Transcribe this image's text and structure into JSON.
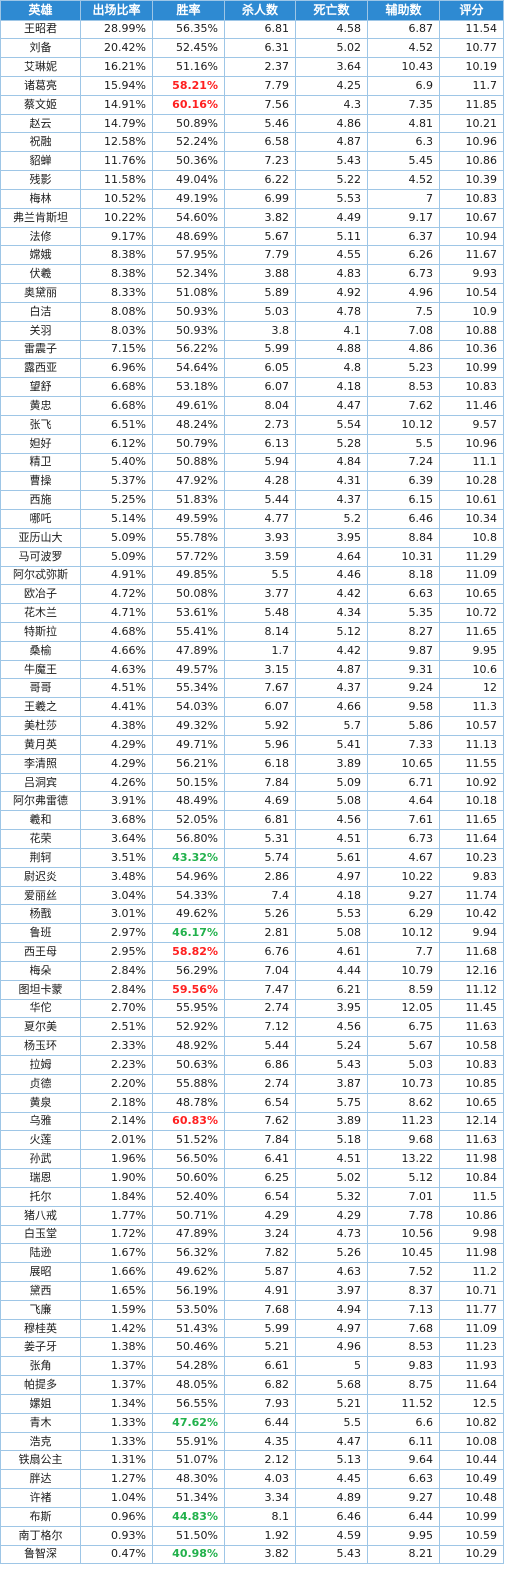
{
  "columns": [
    "英雄",
    "出场比率",
    "胜率",
    "杀人数",
    "死亡数",
    "辅助数",
    "评分"
  ],
  "accent_colors": {
    "header_bg": "#2e8ad2",
    "red_winrate": "#ff2020",
    "green_winrate": "#22b14c",
    "grid": "#9ec6e6"
  },
  "rows": [
    {
      "hero": "王昭君",
      "pick": "28.99%",
      "win": "56.35%",
      "kills": "6.81",
      "deaths": "4.58",
      "assists": "6.87",
      "score": "11.54",
      "hl": ""
    },
    {
      "hero": "刘备",
      "pick": "20.42%",
      "win": "52.45%",
      "kills": "6.31",
      "deaths": "5.02",
      "assists": "4.52",
      "score": "10.77",
      "hl": ""
    },
    {
      "hero": "艾琳妮",
      "pick": "16.21%",
      "win": "51.16%",
      "kills": "2.37",
      "deaths": "3.64",
      "assists": "10.43",
      "score": "10.19",
      "hl": ""
    },
    {
      "hero": "诸葛亮",
      "pick": "15.94%",
      "win": "58.21%",
      "kills": "7.79",
      "deaths": "4.25",
      "assists": "6.9",
      "score": "11.7",
      "hl": "red"
    },
    {
      "hero": "蔡文姬",
      "pick": "14.91%",
      "win": "60.16%",
      "kills": "7.56",
      "deaths": "4.3",
      "assists": "7.35",
      "score": "11.85",
      "hl": "red"
    },
    {
      "hero": "赵云",
      "pick": "14.79%",
      "win": "50.89%",
      "kills": "5.46",
      "deaths": "4.86",
      "assists": "4.81",
      "score": "10.21",
      "hl": ""
    },
    {
      "hero": "祝融",
      "pick": "12.58%",
      "win": "52.24%",
      "kills": "6.58",
      "deaths": "4.87",
      "assists": "6.3",
      "score": "10.96",
      "hl": ""
    },
    {
      "hero": "貂蝉",
      "pick": "11.76%",
      "win": "50.36%",
      "kills": "7.23",
      "deaths": "5.43",
      "assists": "5.45",
      "score": "10.86",
      "hl": ""
    },
    {
      "hero": "残影",
      "pick": "11.58%",
      "win": "49.04%",
      "kills": "6.22",
      "deaths": "5.22",
      "assists": "4.52",
      "score": "10.39",
      "hl": ""
    },
    {
      "hero": "梅林",
      "pick": "10.52%",
      "win": "49.19%",
      "kills": "6.99",
      "deaths": "5.53",
      "assists": "7",
      "score": "10.83",
      "hl": ""
    },
    {
      "hero": "弗兰肯斯坦",
      "pick": "10.22%",
      "win": "54.60%",
      "kills": "3.82",
      "deaths": "4.49",
      "assists": "9.17",
      "score": "10.67",
      "hl": ""
    },
    {
      "hero": "法修",
      "pick": "9.17%",
      "win": "48.69%",
      "kills": "5.67",
      "deaths": "5.11",
      "assists": "6.37",
      "score": "10.94",
      "hl": ""
    },
    {
      "hero": "嫦娥",
      "pick": "8.38%",
      "win": "57.95%",
      "kills": "7.79",
      "deaths": "4.55",
      "assists": "6.26",
      "score": "11.67",
      "hl": ""
    },
    {
      "hero": "伏羲",
      "pick": "8.38%",
      "win": "52.34%",
      "kills": "3.88",
      "deaths": "4.83",
      "assists": "6.73",
      "score": "9.93",
      "hl": ""
    },
    {
      "hero": "奥黛丽",
      "pick": "8.33%",
      "win": "51.08%",
      "kills": "5.89",
      "deaths": "4.92",
      "assists": "4.96",
      "score": "10.54",
      "hl": ""
    },
    {
      "hero": "白洁",
      "pick": "8.08%",
      "win": "50.93%",
      "kills": "5.03",
      "deaths": "4.78",
      "assists": "7.5",
      "score": "10.9",
      "hl": ""
    },
    {
      "hero": "关羽",
      "pick": "8.03%",
      "win": "50.93%",
      "kills": "3.8",
      "deaths": "4.1",
      "assists": "7.08",
      "score": "10.88",
      "hl": ""
    },
    {
      "hero": "雷震子",
      "pick": "7.15%",
      "win": "56.22%",
      "kills": "5.99",
      "deaths": "4.88",
      "assists": "4.86",
      "score": "10.36",
      "hl": ""
    },
    {
      "hero": "露西亚",
      "pick": "6.96%",
      "win": "54.64%",
      "kills": "6.05",
      "deaths": "4.8",
      "assists": "5.23",
      "score": "10.99",
      "hl": ""
    },
    {
      "hero": "望舒",
      "pick": "6.68%",
      "win": "53.18%",
      "kills": "6.07",
      "deaths": "4.18",
      "assists": "8.53",
      "score": "10.83",
      "hl": ""
    },
    {
      "hero": "黄忠",
      "pick": "6.68%",
      "win": "49.61%",
      "kills": "8.04",
      "deaths": "4.47",
      "assists": "7.62",
      "score": "11.46",
      "hl": ""
    },
    {
      "hero": "张飞",
      "pick": "6.51%",
      "win": "48.24%",
      "kills": "2.73",
      "deaths": "5.54",
      "assists": "10.12",
      "score": "9.57",
      "hl": ""
    },
    {
      "hero": "妲好",
      "pick": "6.12%",
      "win": "50.79%",
      "kills": "6.13",
      "deaths": "5.28",
      "assists": "5.5",
      "score": "10.96",
      "hl": ""
    },
    {
      "hero": "精卫",
      "pick": "5.40%",
      "win": "50.88%",
      "kills": "5.94",
      "deaths": "4.84",
      "assists": "7.24",
      "score": "11.1",
      "hl": ""
    },
    {
      "hero": "曹操",
      "pick": "5.37%",
      "win": "47.92%",
      "kills": "4.28",
      "deaths": "4.31",
      "assists": "6.39",
      "score": "10.28",
      "hl": ""
    },
    {
      "hero": "西施",
      "pick": "5.25%",
      "win": "51.83%",
      "kills": "5.44",
      "deaths": "4.37",
      "assists": "6.15",
      "score": "10.61",
      "hl": ""
    },
    {
      "hero": "哪吒",
      "pick": "5.14%",
      "win": "49.59%",
      "kills": "4.77",
      "deaths": "5.2",
      "assists": "6.46",
      "score": "10.34",
      "hl": ""
    },
    {
      "hero": "亚历山大",
      "pick": "5.09%",
      "win": "55.78%",
      "kills": "3.93",
      "deaths": "3.95",
      "assists": "8.84",
      "score": "10.8",
      "hl": ""
    },
    {
      "hero": "马可波罗",
      "pick": "5.09%",
      "win": "57.72%",
      "kills": "3.59",
      "deaths": "4.64",
      "assists": "10.31",
      "score": "11.29",
      "hl": ""
    },
    {
      "hero": "阿尔忒弥斯",
      "pick": "4.91%",
      "win": "49.85%",
      "kills": "5.5",
      "deaths": "4.46",
      "assists": "8.18",
      "score": "11.09",
      "hl": ""
    },
    {
      "hero": "欧冶子",
      "pick": "4.72%",
      "win": "50.08%",
      "kills": "3.77",
      "deaths": "4.42",
      "assists": "6.63",
      "score": "10.65",
      "hl": ""
    },
    {
      "hero": "花木兰",
      "pick": "4.71%",
      "win": "53.61%",
      "kills": "5.48",
      "deaths": "4.34",
      "assists": "5.35",
      "score": "10.72",
      "hl": ""
    },
    {
      "hero": "特斯拉",
      "pick": "4.68%",
      "win": "55.41%",
      "kills": "8.14",
      "deaths": "5.12",
      "assists": "8.27",
      "score": "11.65",
      "hl": ""
    },
    {
      "hero": "桑榆",
      "pick": "4.66%",
      "win": "47.89%",
      "kills": "1.7",
      "deaths": "4.42",
      "assists": "9.87",
      "score": "9.95",
      "hl": ""
    },
    {
      "hero": "牛魔王",
      "pick": "4.63%",
      "win": "49.57%",
      "kills": "3.15",
      "deaths": "4.87",
      "assists": "9.31",
      "score": "10.6",
      "hl": ""
    },
    {
      "hero": "哥哥",
      "pick": "4.51%",
      "win": "55.34%",
      "kills": "7.67",
      "deaths": "4.37",
      "assists": "9.24",
      "score": "12",
      "hl": ""
    },
    {
      "hero": "王羲之",
      "pick": "4.41%",
      "win": "54.03%",
      "kills": "6.07",
      "deaths": "4.66",
      "assists": "9.58",
      "score": "11.3",
      "hl": ""
    },
    {
      "hero": "美杜莎",
      "pick": "4.38%",
      "win": "49.32%",
      "kills": "5.92",
      "deaths": "5.7",
      "assists": "5.86",
      "score": "10.57",
      "hl": ""
    },
    {
      "hero": "黄月英",
      "pick": "4.29%",
      "win": "49.71%",
      "kills": "5.96",
      "deaths": "5.41",
      "assists": "7.33",
      "score": "11.13",
      "hl": ""
    },
    {
      "hero": "李清照",
      "pick": "4.29%",
      "win": "56.21%",
      "kills": "6.18",
      "deaths": "3.89",
      "assists": "10.65",
      "score": "11.55",
      "hl": ""
    },
    {
      "hero": "吕洞宾",
      "pick": "4.26%",
      "win": "50.15%",
      "kills": "7.84",
      "deaths": "5.09",
      "assists": "6.71",
      "score": "10.92",
      "hl": ""
    },
    {
      "hero": "阿尔弗雷德",
      "pick": "3.91%",
      "win": "48.49%",
      "kills": "4.69",
      "deaths": "5.08",
      "assists": "4.64",
      "score": "10.18",
      "hl": ""
    },
    {
      "hero": "羲和",
      "pick": "3.68%",
      "win": "52.05%",
      "kills": "6.81",
      "deaths": "4.56",
      "assists": "7.61",
      "score": "11.65",
      "hl": ""
    },
    {
      "hero": "花荣",
      "pick": "3.64%",
      "win": "56.80%",
      "kills": "5.31",
      "deaths": "4.51",
      "assists": "6.73",
      "score": "11.64",
      "hl": ""
    },
    {
      "hero": "荆轲",
      "pick": "3.51%",
      "win": "43.32%",
      "kills": "5.74",
      "deaths": "5.61",
      "assists": "4.67",
      "score": "10.23",
      "hl": "green"
    },
    {
      "hero": "尉迟炎",
      "pick": "3.48%",
      "win": "54.96%",
      "kills": "2.86",
      "deaths": "4.97",
      "assists": "10.22",
      "score": "9.83",
      "hl": ""
    },
    {
      "hero": "爱丽丝",
      "pick": "3.04%",
      "win": "54.33%",
      "kills": "7.4",
      "deaths": "4.18",
      "assists": "9.27",
      "score": "11.74",
      "hl": ""
    },
    {
      "hero": "杨戬",
      "pick": "3.01%",
      "win": "49.62%",
      "kills": "5.26",
      "deaths": "5.53",
      "assists": "6.29",
      "score": "10.42",
      "hl": ""
    },
    {
      "hero": "鲁班",
      "pick": "2.97%",
      "win": "46.17%",
      "kills": "2.81",
      "deaths": "5.08",
      "assists": "10.12",
      "score": "9.94",
      "hl": "green"
    },
    {
      "hero": "西王母",
      "pick": "2.95%",
      "win": "58.82%",
      "kills": "6.76",
      "deaths": "4.61",
      "assists": "7.7",
      "score": "11.68",
      "hl": "red"
    },
    {
      "hero": "梅朵",
      "pick": "2.84%",
      "win": "56.29%",
      "kills": "7.04",
      "deaths": "4.44",
      "assists": "10.79",
      "score": "12.16",
      "hl": ""
    },
    {
      "hero": "图坦卡蒙",
      "pick": "2.84%",
      "win": "59.56%",
      "kills": "7.47",
      "deaths": "6.21",
      "assists": "8.59",
      "score": "11.12",
      "hl": "red"
    },
    {
      "hero": "华佗",
      "pick": "2.70%",
      "win": "55.95%",
      "kills": "2.74",
      "deaths": "3.95",
      "assists": "12.05",
      "score": "11.45",
      "hl": ""
    },
    {
      "hero": "夏尔美",
      "pick": "2.51%",
      "win": "52.92%",
      "kills": "7.12",
      "deaths": "4.56",
      "assists": "6.75",
      "score": "11.63",
      "hl": ""
    },
    {
      "hero": "杨玉环",
      "pick": "2.33%",
      "win": "48.92%",
      "kills": "5.44",
      "deaths": "5.24",
      "assists": "5.67",
      "score": "10.58",
      "hl": ""
    },
    {
      "hero": "拉姆",
      "pick": "2.23%",
      "win": "50.63%",
      "kills": "6.86",
      "deaths": "5.43",
      "assists": "5.03",
      "score": "10.83",
      "hl": ""
    },
    {
      "hero": "贞德",
      "pick": "2.20%",
      "win": "55.88%",
      "kills": "2.74",
      "deaths": "3.87",
      "assists": "10.73",
      "score": "10.85",
      "hl": ""
    },
    {
      "hero": "黄泉",
      "pick": "2.18%",
      "win": "48.78%",
      "kills": "6.54",
      "deaths": "5.75",
      "assists": "8.62",
      "score": "10.65",
      "hl": ""
    },
    {
      "hero": "乌雅",
      "pick": "2.14%",
      "win": "60.83%",
      "kills": "7.62",
      "deaths": "3.89",
      "assists": "11.23",
      "score": "12.14",
      "hl": "red"
    },
    {
      "hero": "火莲",
      "pick": "2.01%",
      "win": "51.52%",
      "kills": "7.84",
      "deaths": "5.18",
      "assists": "9.68",
      "score": "11.63",
      "hl": ""
    },
    {
      "hero": "孙武",
      "pick": "1.96%",
      "win": "56.50%",
      "kills": "6.41",
      "deaths": "4.51",
      "assists": "13.22",
      "score": "11.98",
      "hl": ""
    },
    {
      "hero": "瑞恩",
      "pick": "1.90%",
      "win": "50.60%",
      "kills": "6.25",
      "deaths": "5.02",
      "assists": "5.12",
      "score": "10.84",
      "hl": ""
    },
    {
      "hero": "托尔",
      "pick": "1.84%",
      "win": "52.40%",
      "kills": "6.54",
      "deaths": "5.32",
      "assists": "7.01",
      "score": "11.5",
      "hl": ""
    },
    {
      "hero": "猪八戒",
      "pick": "1.77%",
      "win": "50.71%",
      "kills": "4.29",
      "deaths": "4.29",
      "assists": "7.78",
      "score": "10.86",
      "hl": ""
    },
    {
      "hero": "白玉堂",
      "pick": "1.72%",
      "win": "47.89%",
      "kills": "3.24",
      "deaths": "4.73",
      "assists": "10.56",
      "score": "9.98",
      "hl": ""
    },
    {
      "hero": "陆逊",
      "pick": "1.67%",
      "win": "56.32%",
      "kills": "7.82",
      "deaths": "5.26",
      "assists": "10.45",
      "score": "11.98",
      "hl": ""
    },
    {
      "hero": "展昭",
      "pick": "1.66%",
      "win": "49.62%",
      "kills": "5.87",
      "deaths": "4.63",
      "assists": "7.52",
      "score": "11.2",
      "hl": ""
    },
    {
      "hero": "黛西",
      "pick": "1.65%",
      "win": "56.19%",
      "kills": "4.91",
      "deaths": "3.97",
      "assists": "8.37",
      "score": "10.71",
      "hl": ""
    },
    {
      "hero": "飞廉",
      "pick": "1.59%",
      "win": "53.50%",
      "kills": "7.68",
      "deaths": "4.94",
      "assists": "7.13",
      "score": "11.77",
      "hl": ""
    },
    {
      "hero": "穆桂英",
      "pick": "1.42%",
      "win": "51.43%",
      "kills": "5.99",
      "deaths": "4.97",
      "assists": "7.68",
      "score": "11.09",
      "hl": ""
    },
    {
      "hero": "姜子牙",
      "pick": "1.38%",
      "win": "50.46%",
      "kills": "5.21",
      "deaths": "4.96",
      "assists": "8.53",
      "score": "11.23",
      "hl": ""
    },
    {
      "hero": "张角",
      "pick": "1.37%",
      "win": "54.28%",
      "kills": "6.61",
      "deaths": "5",
      "assists": "9.83",
      "score": "11.93",
      "hl": ""
    },
    {
      "hero": "帕提多",
      "pick": "1.37%",
      "win": "48.05%",
      "kills": "6.82",
      "deaths": "5.68",
      "assists": "8.75",
      "score": "11.64",
      "hl": ""
    },
    {
      "hero": "嫘姐",
      "pick": "1.34%",
      "win": "56.55%",
      "kills": "7.93",
      "deaths": "5.21",
      "assists": "11.52",
      "score": "12.5",
      "hl": ""
    },
    {
      "hero": "青木",
      "pick": "1.33%",
      "win": "47.62%",
      "kills": "6.44",
      "deaths": "5.5",
      "assists": "6.6",
      "score": "10.82",
      "hl": "green"
    },
    {
      "hero": "浩克",
      "pick": "1.33%",
      "win": "55.91%",
      "kills": "4.35",
      "deaths": "4.47",
      "assists": "6.11",
      "score": "10.08",
      "hl": ""
    },
    {
      "hero": "铁扇公主",
      "pick": "1.31%",
      "win": "51.07%",
      "kills": "2.12",
      "deaths": "5.13",
      "assists": "9.64",
      "score": "10.44",
      "hl": ""
    },
    {
      "hero": "胖达",
      "pick": "1.27%",
      "win": "48.30%",
      "kills": "4.03",
      "deaths": "4.45",
      "assists": "6.63",
      "score": "10.49",
      "hl": ""
    },
    {
      "hero": "许褚",
      "pick": "1.04%",
      "win": "51.34%",
      "kills": "3.34",
      "deaths": "4.89",
      "assists": "9.27",
      "score": "10.48",
      "hl": ""
    },
    {
      "hero": "布斯",
      "pick": "0.96%",
      "win": "44.83%",
      "kills": "8.1",
      "deaths": "6.46",
      "assists": "6.44",
      "score": "10.99",
      "hl": "green"
    },
    {
      "hero": "南丁格尔",
      "pick": "0.93%",
      "win": "51.50%",
      "kills": "1.92",
      "deaths": "4.59",
      "assists": "9.95",
      "score": "10.59",
      "hl": ""
    },
    {
      "hero": "鲁智深",
      "pick": "0.47%",
      "win": "40.98%",
      "kills": "3.82",
      "deaths": "5.43",
      "assists": "8.21",
      "score": "10.29",
      "hl": "green"
    }
  ]
}
